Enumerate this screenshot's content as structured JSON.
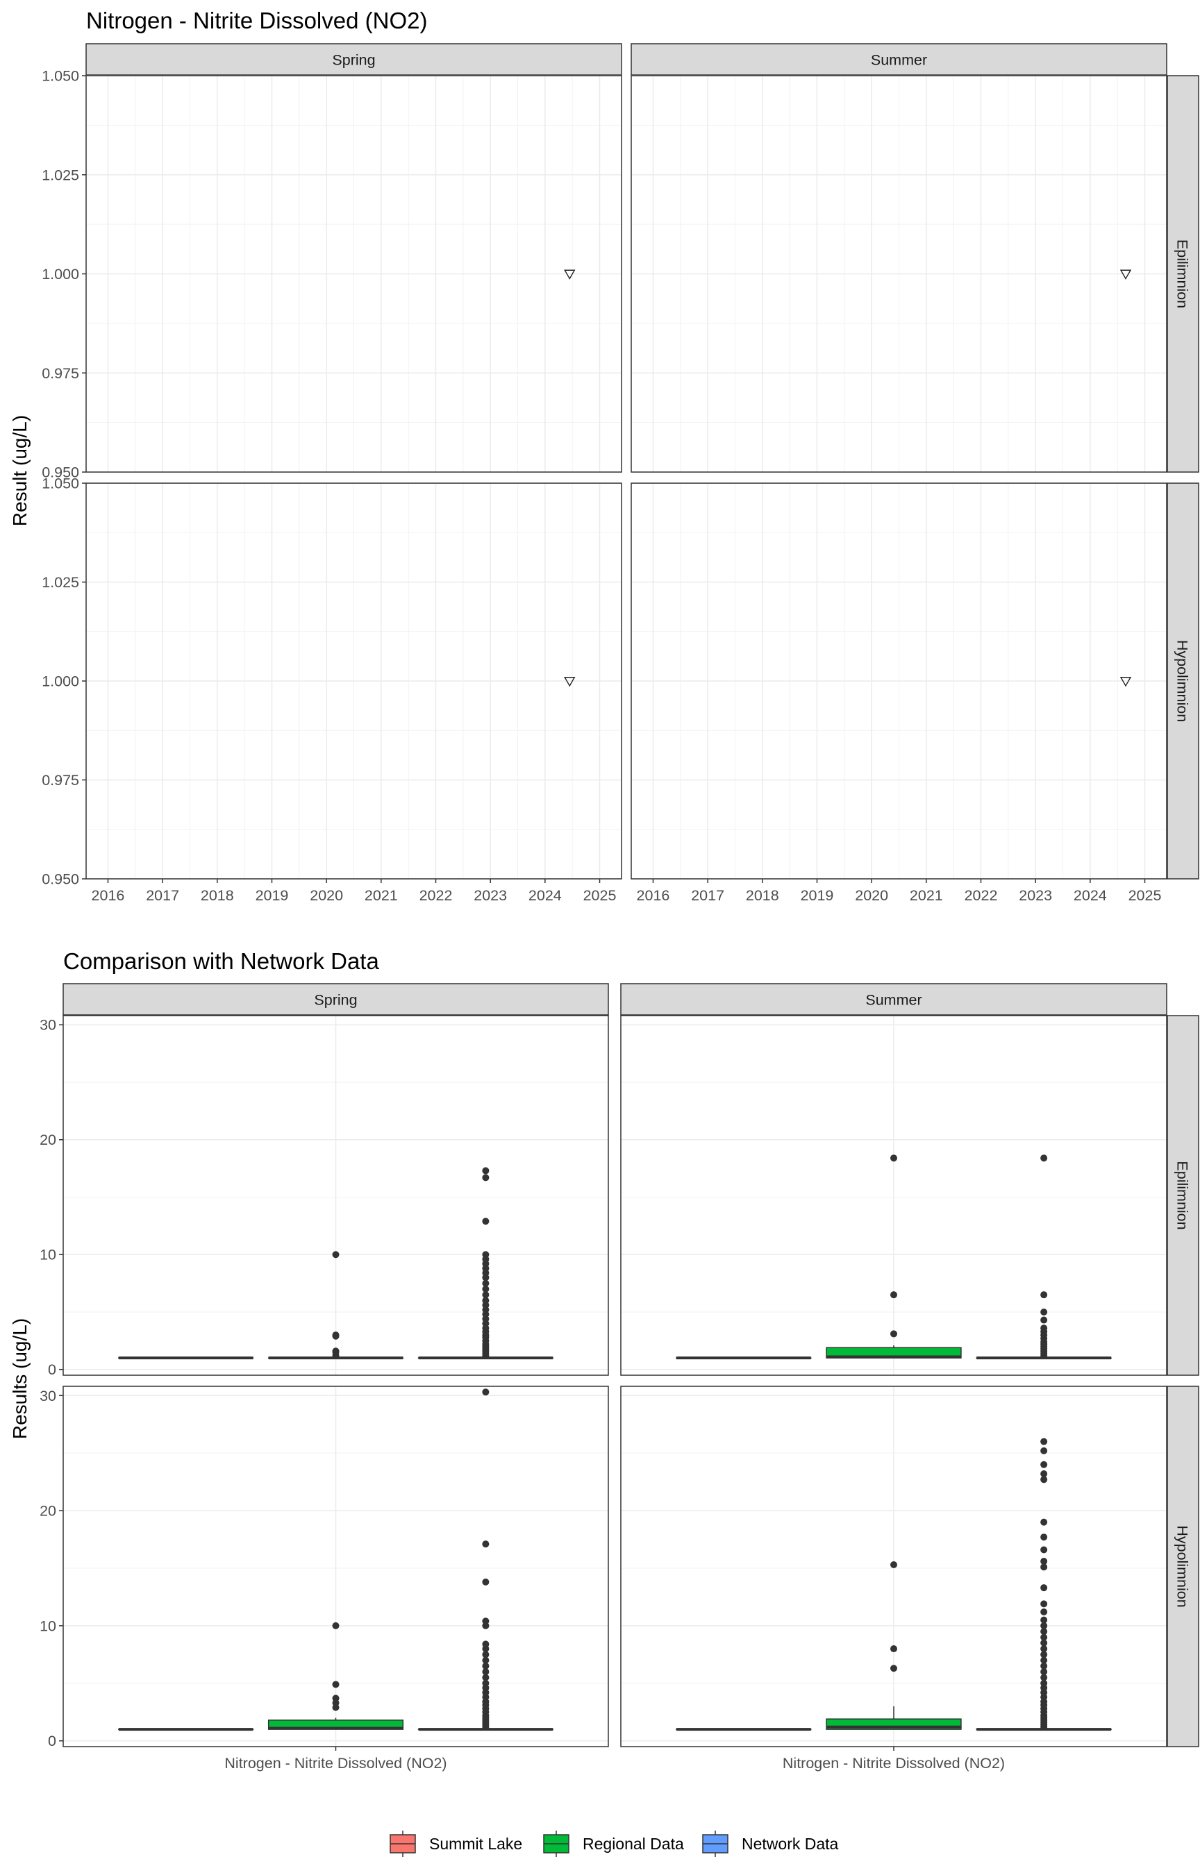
{
  "chart_data": [
    {
      "type": "scatter",
      "title": "Nitrogen - Nitrite Dissolved (NO2)",
      "xlabel": "",
      "ylabel": "Result (ug/L)",
      "x_ticks": [
        "2016",
        "2017",
        "2018",
        "2019",
        "2020",
        "2021",
        "2022",
        "2023",
        "2024",
        "2025"
      ],
      "y_ticks": [
        "0.950",
        "0.975",
        "1.000",
        "1.025",
        "1.050"
      ],
      "xlim": [
        2015.6,
        2025.4
      ],
      "ylim": [
        0.95,
        1.05
      ],
      "grid": true,
      "facet_cols": [
        "Spring",
        "Summer"
      ],
      "facet_rows": [
        "Epilimnion",
        "Hypolimnion"
      ],
      "marker": "open-down-triangle",
      "panels": [
        {
          "col": "Spring",
          "row": "Epilimnion",
          "points": [
            {
              "x": 2024.45,
              "y": 1.0
            }
          ]
        },
        {
          "col": "Summer",
          "row": "Epilimnion",
          "points": [
            {
              "x": 2024.65,
              "y": 1.0
            }
          ]
        },
        {
          "col": "Spring",
          "row": "Hypolimnion",
          "points": [
            {
              "x": 2024.45,
              "y": 1.0
            }
          ]
        },
        {
          "col": "Summer",
          "row": "Hypolimnion",
          "points": [
            {
              "x": 2024.65,
              "y": 1.0
            }
          ]
        }
      ]
    },
    {
      "type": "box",
      "title": "Comparison with Network Data",
      "xlabel": "",
      "ylabel": "Results (ug/L)",
      "category": "Nitrogen - Nitrite Dissolved (NO2)",
      "y_ticks": [
        "0",
        "10",
        "20",
        "30"
      ],
      "ylim": [
        -0.5,
        30.8
      ],
      "grid": true,
      "facet_cols": [
        "Spring",
        "Summer"
      ],
      "facet_rows": [
        "Epilimnion",
        "Hypolimnion"
      ],
      "groups": [
        "Summit Lake",
        "Regional Data",
        "Network Data"
      ],
      "group_colors": {
        "Summit Lake": "#F8766D",
        "Regional Data": "#00BA38",
        "Network Data": "#619CFF"
      },
      "legend_position": "bottom",
      "panels": [
        {
          "col": "Spring",
          "row": "Epilimnion",
          "boxes": [
            {
              "group": "Summit Lake",
              "q1": 1,
              "median": 1,
              "q3": 1,
              "lower": 1,
              "upper": 1,
              "outliers": []
            },
            {
              "group": "Regional Data",
              "q1": 1,
              "median": 1,
              "q3": 1,
              "lower": 1,
              "upper": 1,
              "outliers": [
                1.2,
                1.5,
                1.6,
                2.9,
                3.0,
                10.0
              ]
            },
            {
              "group": "Network Data",
              "q1": 1,
              "median": 1,
              "q3": 1,
              "lower": 1,
              "upper": 1,
              "outliers": [
                1.2,
                1.4,
                1.6,
                1.8,
                2.0,
                2.2,
                2.5,
                2.8,
                3.0,
                3.3,
                3.6,
                4.0,
                4.4,
                4.8,
                5.2,
                5.6,
                6.0,
                6.5,
                7.0,
                7.5,
                8.0,
                8.4,
                8.8,
                9.2,
                9.6,
                10.0,
                12.9,
                16.7,
                17.3
              ]
            }
          ]
        },
        {
          "col": "Summer",
          "row": "Epilimnion",
          "boxes": [
            {
              "group": "Summit Lake",
              "q1": 1,
              "median": 1,
              "q3": 1,
              "lower": 1,
              "upper": 1,
              "outliers": []
            },
            {
              "group": "Regional Data",
              "q1": 1,
              "median": 1.1,
              "q3": 1.9,
              "lower": 1,
              "upper": 2.1,
              "outliers": [
                3.1,
                6.5,
                18.4
              ]
            },
            {
              "group": "Network Data",
              "q1": 1,
              "median": 1,
              "q3": 1,
              "lower": 1,
              "upper": 1,
              "outliers": [
                1.2,
                1.4,
                1.6,
                1.8,
                2.0,
                2.2,
                2.4,
                2.7,
                3.0,
                3.3,
                3.6,
                4.3,
                5.0,
                6.5,
                18.4
              ]
            }
          ]
        },
        {
          "col": "Spring",
          "row": "Hypolimnion",
          "boxes": [
            {
              "group": "Summit Lake",
              "q1": 1,
              "median": 1,
              "q3": 1,
              "lower": 1,
              "upper": 1,
              "outliers": []
            },
            {
              "group": "Regional Data",
              "q1": 1,
              "median": 1.1,
              "q3": 1.8,
              "lower": 1,
              "upper": 2.0,
              "outliers": [
                2.9,
                3.3,
                3.7,
                4.9,
                10.0
              ]
            },
            {
              "group": "Network Data",
              "q1": 1,
              "median": 1,
              "q3": 1,
              "lower": 1,
              "upper": 1,
              "outliers": [
                1.2,
                1.4,
                1.6,
                1.8,
                2.0,
                2.2,
                2.5,
                2.8,
                3.1,
                3.4,
                3.8,
                4.2,
                4.6,
                5.0,
                5.5,
                6.0,
                6.5,
                7.0,
                7.5,
                8.0,
                8.4,
                10.0,
                10.4,
                13.8,
                17.1,
                30.3
              ]
            }
          ]
        },
        {
          "col": "Summer",
          "row": "Hypolimnion",
          "boxes": [
            {
              "group": "Summit Lake",
              "q1": 1,
              "median": 1,
              "q3": 1,
              "lower": 1,
              "upper": 1,
              "outliers": []
            },
            {
              "group": "Regional Data",
              "q1": 1,
              "median": 1.2,
              "q3": 1.9,
              "lower": 1,
              "upper": 3.0,
              "outliers": [
                6.3,
                8.0,
                15.3
              ]
            },
            {
              "group": "Network Data",
              "q1": 1,
              "median": 1,
              "q3": 1,
              "lower": 1,
              "upper": 1,
              "outliers": [
                1.2,
                1.4,
                1.6,
                1.8,
                2.0,
                2.2,
                2.5,
                2.8,
                3.1,
                3.4,
                3.8,
                4.2,
                4.6,
                5.0,
                5.5,
                6.0,
                6.5,
                7.0,
                7.5,
                8.0,
                8.5,
                9.0,
                9.5,
                10.0,
                10.5,
                11.2,
                11.9,
                13.3,
                15.1,
                15.6,
                16.6,
                17.7,
                19.0,
                22.7,
                23.2,
                24.0,
                25.2,
                26.0
              ]
            }
          ]
        }
      ]
    }
  ]
}
